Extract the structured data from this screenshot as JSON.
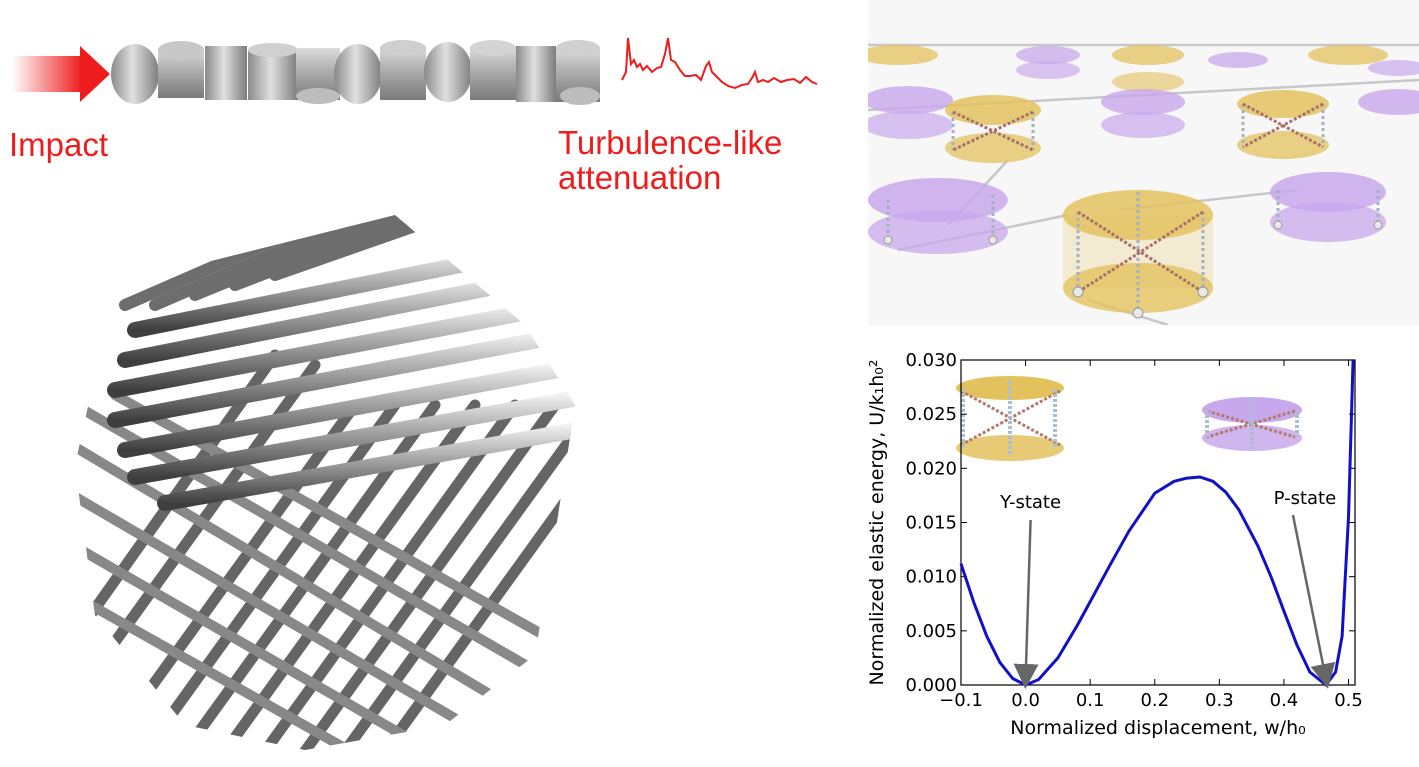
{
  "labels": {
    "impact": "Impact",
    "turbulence_line1": "Turbulence-like",
    "turbulence_line2": "attenuation"
  },
  "colors": {
    "accent_red": "#ee1c1c",
    "curve_blue": "#1010c8",
    "disc_yellow": "#e3c25e",
    "disc_purple": "#c8a8ec",
    "rod_gray": "#9a9a9a",
    "annotation_gray": "#666666"
  },
  "icons": {
    "impact_arrow": "arrow-right-icon",
    "signal_trace": "decay-signal-icon"
  },
  "chart_data": {
    "type": "line",
    "xlabel": "Normalized displacement, w/h₀",
    "ylabel": "Normalized elastic energy, U/k₁h₀²",
    "xlim": [
      -0.1,
      0.51
    ],
    "ylim": [
      0.0,
      0.03
    ],
    "xticks": [
      "−0.1",
      "0.0",
      "0.1",
      "0.2",
      "0.3",
      "0.4",
      "0.5"
    ],
    "yticks": [
      "0.000",
      "0.005",
      "0.010",
      "0.015",
      "0.020",
      "0.025",
      "0.030"
    ],
    "grid": false,
    "series": [
      {
        "x": [
          -0.1,
          -0.08,
          -0.06,
          -0.04,
          -0.02,
          0.0,
          0.02,
          0.05,
          0.08,
          0.1,
          0.13,
          0.16,
          0.2,
          0.23,
          0.25,
          0.27,
          0.29,
          0.31,
          0.33,
          0.36,
          0.38,
          0.4,
          0.42,
          0.44,
          0.465,
          0.48,
          0.49,
          0.5,
          0.507
        ],
        "values": [
          0.0112,
          0.0076,
          0.0045,
          0.0021,
          0.0006,
          0.0,
          0.0005,
          0.0025,
          0.0055,
          0.0077,
          0.011,
          0.0142,
          0.0177,
          0.0188,
          0.0191,
          0.0192,
          0.0188,
          0.0178,
          0.0162,
          0.0128,
          0.01,
          0.0068,
          0.0037,
          0.0012,
          0.0,
          0.0012,
          0.0045,
          0.0155,
          0.03
        ]
      }
    ],
    "annotations": [
      {
        "text": "Y-state",
        "x": 0.0,
        "y": 0.0
      },
      {
        "text": "P-state",
        "x": 0.465,
        "y": 0.0
      }
    ]
  }
}
